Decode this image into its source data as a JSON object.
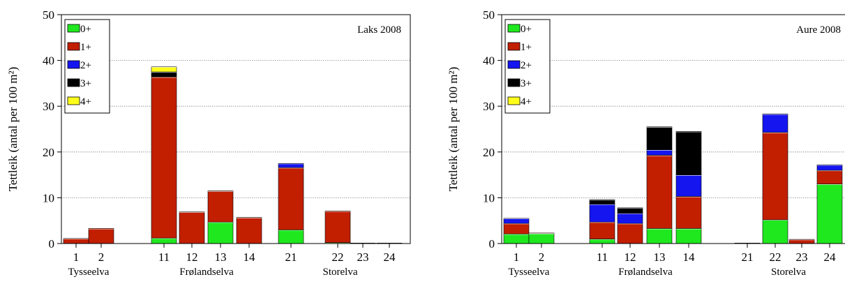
{
  "colors": {
    "0+": "#1fe81f",
    "1+": "#c21e00",
    "2+": "#1515f0",
    "3+": "#000000",
    "4+": "#ffff1a"
  },
  "chart_data": [
    {
      "type": "bar",
      "stacked": true,
      "annotation": "Laks 2008",
      "ylabel": "Tettleik (antal per 100 m²)",
      "ylim": [
        0,
        50
      ],
      "yticks": [
        0,
        10,
        20,
        30,
        40,
        50
      ],
      "grid": "horizontal dotted",
      "legend_position": "top-left",
      "categories": [
        "1",
        "2",
        "11",
        "12",
        "13",
        "14",
        "21",
        "22",
        "23",
        "24"
      ],
      "groups": [
        {
          "label": "Tysseelva",
          "categories": [
            "1",
            "2"
          ]
        },
        {
          "label": "Frølandselva",
          "categories": [
            "11",
            "12",
            "13",
            "14"
          ]
        },
        {
          "label": "Storelva",
          "categories": [
            "21",
            "22",
            "23",
            "24"
          ]
        }
      ],
      "series": [
        {
          "name": "0+",
          "values": [
            0,
            0,
            1.2,
            0,
            4.7,
            0,
            3.0,
            0.2,
            0,
            0
          ]
        },
        {
          "name": "1+",
          "values": [
            1.1,
            3.3,
            35.2,
            6.9,
            6.8,
            5.7,
            13.6,
            6.9,
            0.1,
            0.1
          ]
        },
        {
          "name": "2+",
          "values": [
            0,
            0,
            0,
            0,
            0,
            0,
            0.9,
            0,
            0,
            0
          ]
        },
        {
          "name": "3+",
          "values": [
            0,
            0,
            1.1,
            0,
            0,
            0,
            0,
            0,
            0,
            0
          ]
        },
        {
          "name": "4+",
          "values": [
            0,
            0,
            1.1,
            0,
            0,
            0,
            0,
            0,
            0,
            0
          ]
        }
      ]
    },
    {
      "type": "bar",
      "stacked": true,
      "annotation": "Aure 2008",
      "ylabel": "Tettleik (antal per 100 m²)",
      "ylim": [
        0,
        50
      ],
      "yticks": [
        0,
        10,
        20,
        30,
        40,
        50
      ],
      "grid": "horizontal dotted",
      "legend_position": "top-left",
      "categories": [
        "1",
        "2",
        "11",
        "12",
        "13",
        "14",
        "21",
        "22",
        "23",
        "24"
      ],
      "groups": [
        {
          "label": "Tysseelva",
          "categories": [
            "1",
            "2"
          ]
        },
        {
          "label": "Frølandselva",
          "categories": [
            "11",
            "12",
            "13",
            "14"
          ]
        },
        {
          "label": "Storelva",
          "categories": [
            "21",
            "22",
            "23",
            "24"
          ]
        }
      ],
      "series": [
        {
          "name": "0+",
          "values": [
            2.1,
            2.2,
            1.0,
            0,
            3.3,
            3.3,
            0,
            5.2,
            0,
            13.0
          ]
        },
        {
          "name": "1+",
          "values": [
            2.3,
            0.1,
            3.7,
            4.4,
            16.0,
            7.0,
            0.1,
            19.1,
            0.9,
            3.0
          ]
        },
        {
          "name": "2+",
          "values": [
            1.1,
            0,
            3.9,
            2.2,
            1.2,
            4.7,
            0,
            4.0,
            0,
            1.2
          ]
        },
        {
          "name": "3+",
          "values": [
            0,
            0,
            1.0,
            1.2,
            5.0,
            9.5,
            0,
            0,
            0,
            0
          ]
        },
        {
          "name": "4+",
          "values": [
            0,
            0,
            0,
            0,
            0,
            0,
            0,
            0,
            0,
            0
          ]
        }
      ]
    }
  ]
}
